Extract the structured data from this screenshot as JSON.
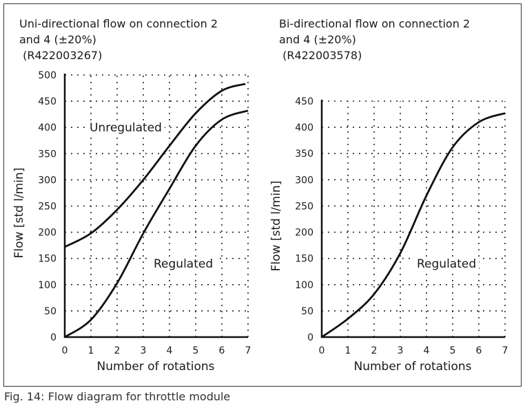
{
  "caption": "Fig. 14:  Flow diagram for throttle module",
  "chart_data": [
    {
      "type": "line",
      "title_lines": [
        "Uni-directional flow on connection 2",
        "and 4 (±20%)",
        " (R422003267)"
      ],
      "xlabel": "Number of rotations",
      "ylabel": "Flow [std l/min]",
      "xlim": [
        0,
        7
      ],
      "ylim": [
        0,
        500
      ],
      "xticks": [
        0,
        1,
        2,
        3,
        4,
        5,
        6,
        7
      ],
      "yticks": [
        0,
        50,
        100,
        150,
        200,
        250,
        300,
        350,
        400,
        450,
        500
      ],
      "grid": true,
      "series": [
        {
          "name": "Unregulated",
          "x": [
            0,
            1,
            2,
            3,
            4,
            5,
            6,
            6.9
          ],
          "y": [
            172,
            198,
            243,
            300,
            365,
            427,
            470,
            483
          ]
        },
        {
          "name": "Regulated",
          "x": [
            0,
            1,
            2,
            3,
            4,
            5,
            6,
            7
          ],
          "y": [
            0,
            33,
            103,
            198,
            283,
            365,
            415,
            432
          ]
        }
      ]
    },
    {
      "type": "line",
      "title_lines": [
        "Bi-directional flow on connection 2",
        "and 4 (±20%)",
        " (R422003578)"
      ],
      "xlabel": "Number of rotations",
      "ylabel": "Flow [std l/min]",
      "xlim": [
        0,
        7
      ],
      "ylim": [
        0,
        450
      ],
      "xticks": [
        0,
        1,
        2,
        3,
        4,
        5,
        6,
        7
      ],
      "yticks": [
        0,
        50,
        100,
        150,
        200,
        250,
        300,
        350,
        400,
        450
      ],
      "grid": true,
      "series": [
        {
          "name": "Regulated",
          "x": [
            0,
            1,
            2,
            3,
            4,
            5,
            6,
            7
          ],
          "y": [
            0,
            35,
            82,
            160,
            270,
            362,
            410,
            427
          ]
        }
      ]
    }
  ]
}
